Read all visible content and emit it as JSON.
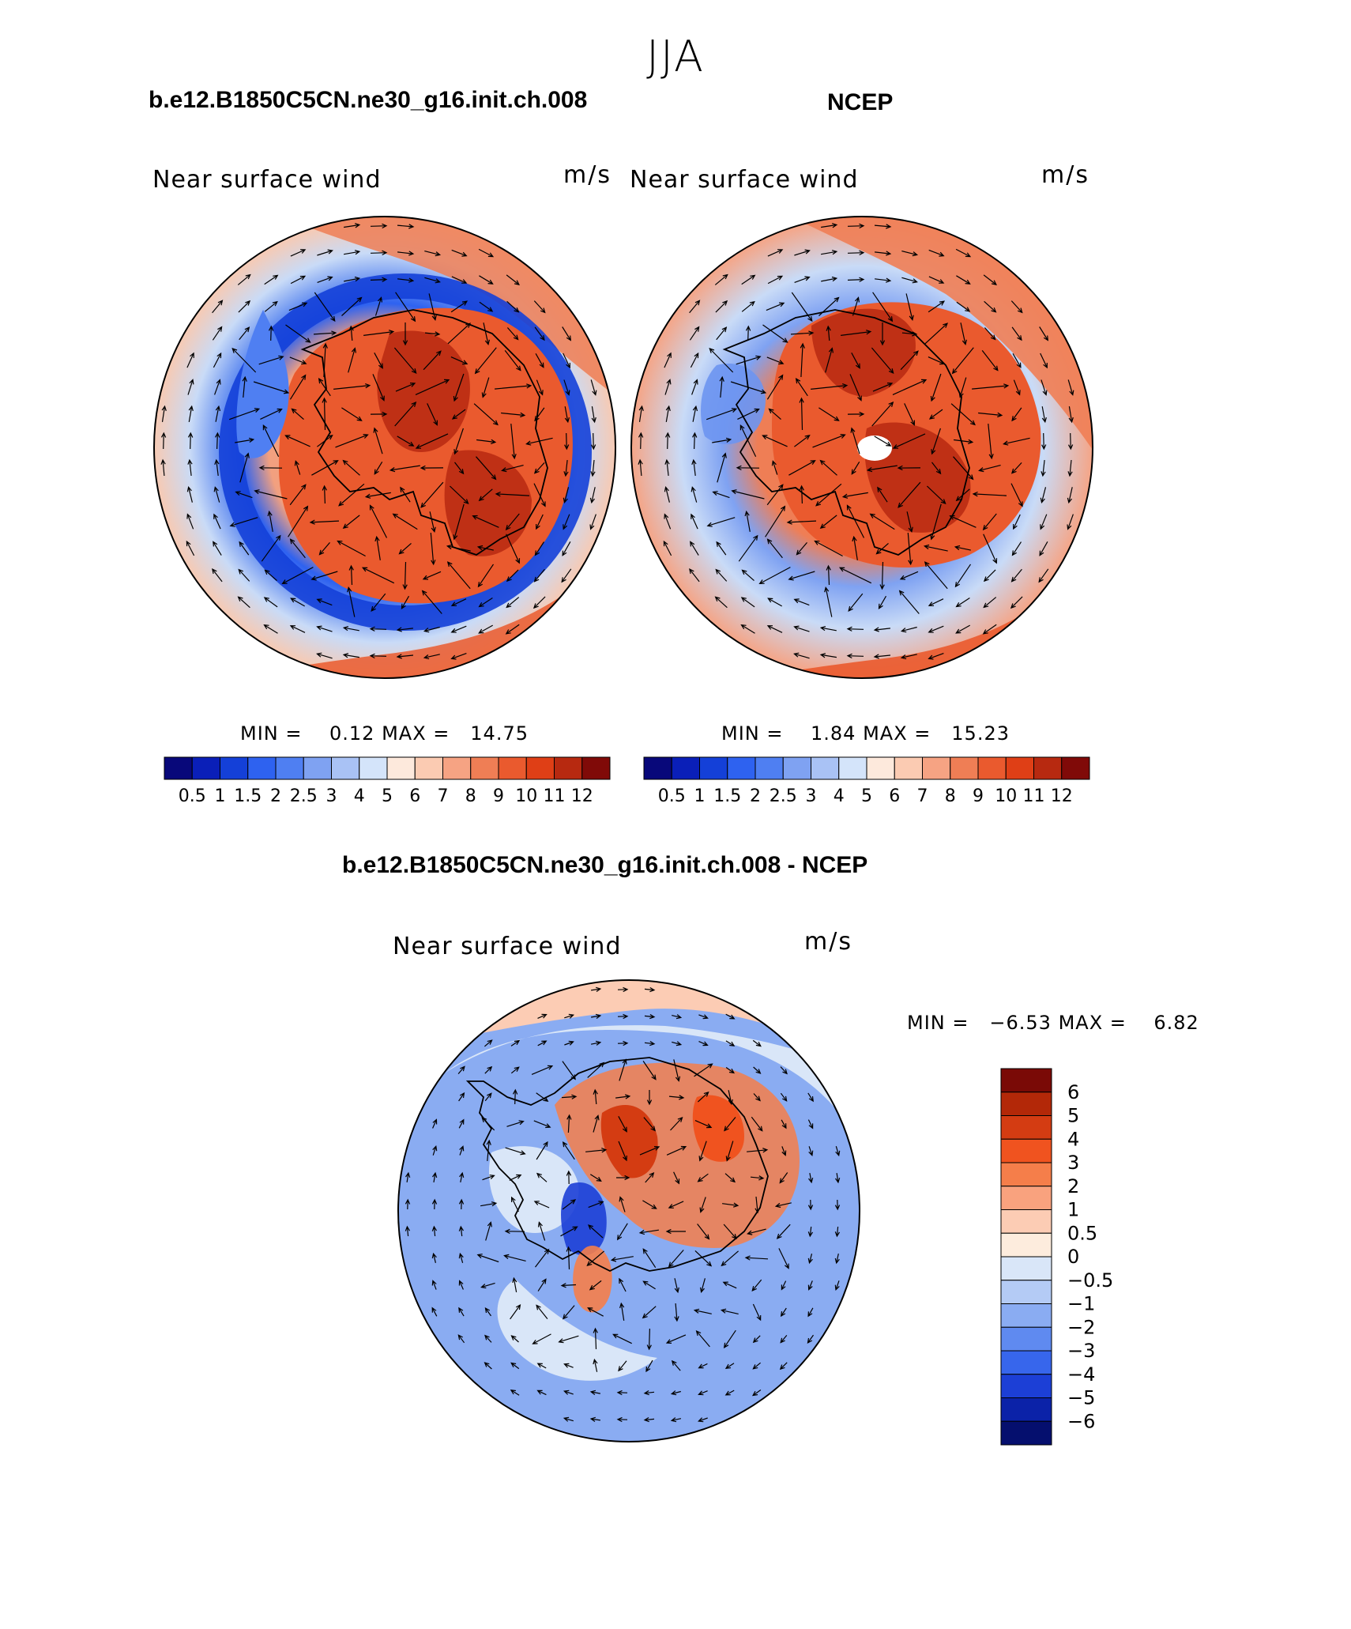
{
  "page": {
    "title": "JJA"
  },
  "chart_data": [
    {
      "type": "heatmap",
      "projection": "south polar stereographic",
      "title": "b.e12.B1850C5CN.ne30_g16.init.ch.008",
      "field": "Near surface wind",
      "units": "m/s",
      "stats": {
        "min_label": "MIN =",
        "min": "0.12",
        "max_label": "MAX =",
        "max": "14.75"
      },
      "colorbar": {
        "orientation": "horizontal",
        "levels": [
          0.5,
          1,
          1.5,
          2,
          2.5,
          3,
          4,
          5,
          6,
          7,
          8,
          9,
          10,
          11,
          12
        ],
        "tick_labels": [
          "0.5",
          "1",
          "1.5",
          "2",
          "2.5",
          "3",
          "4",
          "5",
          "6",
          "7",
          "8",
          "9",
          "10",
          "11",
          "12"
        ],
        "colors": [
          "#08087a",
          "#0a1fb8",
          "#1440d8",
          "#2e62f0",
          "#4f7ff2",
          "#7fa2f2",
          "#a9c2f5",
          "#d4e4fa",
          "#fde9dc",
          "#fbcbb2",
          "#f6a383",
          "#ef7e55",
          "#ea5a2e",
          "#df3f16",
          "#b72910",
          "#800a08"
        ]
      },
      "vectors": true
    },
    {
      "type": "heatmap",
      "projection": "south polar stereographic",
      "title": "NCEP",
      "field": "Near surface wind",
      "units": "m/s",
      "stats": {
        "min_label": "MIN =",
        "min": "1.84",
        "max_label": "MAX =",
        "max": "15.23"
      },
      "colorbar": {
        "orientation": "horizontal",
        "levels": [
          0.5,
          1,
          1.5,
          2,
          2.5,
          3,
          4,
          5,
          6,
          7,
          8,
          9,
          10,
          11,
          12
        ],
        "tick_labels": [
          "0.5",
          "1",
          "1.5",
          "2",
          "2.5",
          "3",
          "4",
          "5",
          "6",
          "7",
          "8",
          "9",
          "10",
          "11",
          "12"
        ],
        "colors": [
          "#08087a",
          "#0a1fb8",
          "#1440d8",
          "#2e62f0",
          "#4f7ff2",
          "#7fa2f2",
          "#a9c2f5",
          "#d4e4fa",
          "#fde9dc",
          "#fbcbb2",
          "#f6a383",
          "#ef7e55",
          "#ea5a2e",
          "#df3f16",
          "#b72910",
          "#800a08"
        ]
      },
      "vectors": true
    },
    {
      "type": "heatmap",
      "projection": "south polar stereographic",
      "title": "b.e12.B1850C5CN.ne30_g16.init.ch.008 - NCEP",
      "field": "Near surface wind",
      "units": "m/s",
      "stats": {
        "min_label": "MIN =",
        "min": "−6.53",
        "max_label": "MAX =",
        "max": "6.82"
      },
      "colorbar": {
        "orientation": "vertical",
        "levels": [
          -6,
          -5,
          -4,
          -3,
          -2,
          -1,
          -0.5,
          0,
          0.5,
          1,
          2,
          3,
          4,
          5,
          6
        ],
        "tick_labels": [
          "6",
          "5",
          "4",
          "3",
          "2",
          "1",
          "0.5",
          "0",
          "−0.5",
          "−1",
          "−2",
          "−3",
          "−4",
          "−5",
          "−6"
        ],
        "colors_top_to_bottom": [
          "#7a0a06",
          "#b32808",
          "#d43c12",
          "#f0531f",
          "#f57e4a",
          "#f9a27e",
          "#fcccb4",
          "#fdecdd",
          "#d9e6f8",
          "#b4cbf5",
          "#8aacf2",
          "#5f8af0",
          "#3766ec",
          "#1c3fd6",
          "#0b22a8",
          "#050f6e"
        ]
      },
      "vectors": true
    }
  ]
}
